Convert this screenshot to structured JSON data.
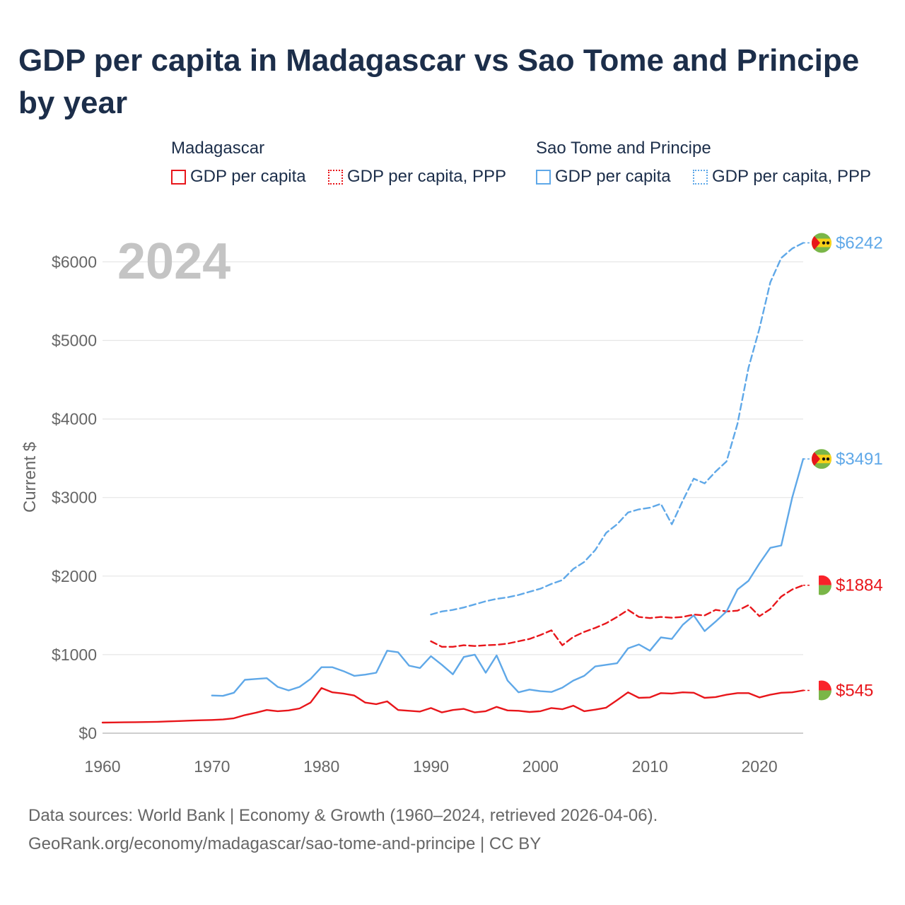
{
  "title": "GDP per capita in Madagascar vs Sao Tome and Principe by year",
  "legend": {
    "groups": [
      {
        "name": "Madagascar",
        "color": "#e8161b",
        "items": [
          "GDP per capita",
          "GDP per capita, PPP"
        ]
      },
      {
        "name": "Sao Tome and Principe",
        "color": "#5fa8e8",
        "items": [
          "GDP per capita",
          "GDP per capita, PPP"
        ]
      }
    ]
  },
  "year_label": "2024",
  "sources": {
    "line1": "Data sources: World Bank | Economy & Growth (1960–2024, retrieved 2026-04-06).",
    "line2": "GeoRank.org/economy/madagascar/sao-tome-and-principe | CC BY"
  },
  "chart_data": {
    "type": "line",
    "ylabel": "Current $",
    "xlabel": "",
    "xlim": [
      1960,
      2024
    ],
    "ylim": [
      0,
      6600
    ],
    "x_ticks": [
      1960,
      1970,
      1980,
      1990,
      2000,
      2010,
      2020
    ],
    "y_ticks": [
      0,
      1000,
      2000,
      3000,
      4000,
      5000,
      6000
    ],
    "y_tick_labels": [
      "$0",
      "$1000",
      "$2000",
      "$3000",
      "$4000",
      "$5000",
      "$6000"
    ],
    "series": [
      {
        "name": "Madagascar GDP per capita",
        "country": "Madagascar",
        "color": "#e8161b",
        "dash": "solid",
        "end_label": "$545",
        "flag": "madagascar-flag",
        "x": [
          1960,
          1961,
          1962,
          1963,
          1964,
          1965,
          1966,
          1967,
          1968,
          1969,
          1970,
          1971,
          1972,
          1973,
          1974,
          1975,
          1976,
          1977,
          1978,
          1979,
          1980,
          1981,
          1982,
          1983,
          1984,
          1985,
          1986,
          1987,
          1988,
          1989,
          1990,
          1991,
          1992,
          1993,
          1994,
          1995,
          1996,
          1997,
          1998,
          1999,
          2000,
          2001,
          2002,
          2003,
          2004,
          2005,
          2006,
          2007,
          2008,
          2009,
          2010,
          2011,
          2012,
          2013,
          2014,
          2015,
          2016,
          2017,
          2018,
          2019,
          2020,
          2021,
          2022,
          2023,
          2024
        ],
        "values": [
          135,
          137,
          139,
          140,
          142,
          145,
          150,
          155,
          160,
          165,
          168,
          175,
          190,
          230,
          260,
          295,
          280,
          290,
          315,
          390,
          575,
          520,
          505,
          480,
          390,
          370,
          405,
          295,
          285,
          275,
          320,
          265,
          295,
          310,
          265,
          280,
          335,
          290,
          285,
          270,
          280,
          320,
          305,
          350,
          280,
          300,
          325,
          420,
          520,
          450,
          455,
          510,
          505,
          520,
          515,
          450,
          460,
          490,
          510,
          510,
          455,
          490,
          515,
          520,
          545
        ]
      },
      {
        "name": "Madagascar GDP per capita, PPP",
        "country": "Madagascar",
        "color": "#e8161b",
        "dash": "dashed",
        "end_label": "$1884",
        "flag": "madagascar-flag",
        "x": [
          1990,
          1991,
          1992,
          1993,
          1994,
          1995,
          1996,
          1997,
          1998,
          1999,
          2000,
          2001,
          2002,
          2003,
          2004,
          2005,
          2006,
          2007,
          2008,
          2009,
          2010,
          2011,
          2012,
          2013,
          2014,
          2015,
          2016,
          2017,
          2018,
          2019,
          2020,
          2021,
          2022,
          2023,
          2024
        ],
        "values": [
          1170,
          1100,
          1100,
          1120,
          1110,
          1120,
          1125,
          1140,
          1170,
          1200,
          1250,
          1310,
          1120,
          1225,
          1290,
          1340,
          1400,
          1480,
          1570,
          1480,
          1465,
          1480,
          1470,
          1480,
          1510,
          1500,
          1570,
          1550,
          1560,
          1630,
          1490,
          1580,
          1740,
          1830,
          1884
        ]
      },
      {
        "name": "Sao Tome and Principe GDP per capita",
        "country": "Sao Tome and Principe",
        "color": "#5fa8e8",
        "dash": "solid",
        "end_label": "$3491",
        "flag": "sao-tome-flag",
        "x": [
          1970,
          1971,
          1972,
          1973,
          1974,
          1975,
          1976,
          1977,
          1978,
          1979,
          1980,
          1981,
          1982,
          1983,
          1984,
          1985,
          1986,
          1987,
          1988,
          1989,
          1990,
          1991,
          1992,
          1993,
          1994,
          1995,
          1996,
          1997,
          1998,
          1999,
          2000,
          2001,
          2002,
          2003,
          2004,
          2005,
          2006,
          2007,
          2008,
          2009,
          2010,
          2011,
          2012,
          2013,
          2014,
          2015,
          2016,
          2017,
          2018,
          2019,
          2020,
          2021,
          2022,
          2023,
          2024
        ],
        "values": [
          480,
          475,
          515,
          680,
          690,
          700,
          590,
          545,
          590,
          690,
          840,
          840,
          790,
          730,
          745,
          770,
          1050,
          1030,
          860,
          830,
          980,
          870,
          750,
          970,
          1000,
          770,
          990,
          670,
          520,
          555,
          535,
          525,
          580,
          670,
          730,
          850,
          870,
          890,
          1080,
          1130,
          1050,
          1220,
          1200,
          1380,
          1500,
          1300,
          1420,
          1550,
          1830,
          1940,
          2160,
          2360,
          2390,
          3000,
          3491
        ]
      },
      {
        "name": "Sao Tome and Principe GDP per capita, PPP",
        "country": "Sao Tome and Principe",
        "color": "#5fa8e8",
        "dash": "dashed",
        "end_label": "$6242",
        "flag": "sao-tome-flag",
        "x": [
          1990,
          1991,
          1992,
          1993,
          1994,
          1995,
          1996,
          1997,
          1998,
          1999,
          2000,
          2001,
          2002,
          2003,
          2004,
          2005,
          2006,
          2007,
          2008,
          2009,
          2010,
          2011,
          2012,
          2013,
          2014,
          2015,
          2016,
          2017,
          2018,
          2019,
          2020,
          2021,
          2022,
          2023,
          2024
        ],
        "values": [
          1510,
          1550,
          1570,
          1600,
          1640,
          1680,
          1710,
          1730,
          1760,
          1800,
          1840,
          1900,
          1950,
          2090,
          2180,
          2330,
          2550,
          2660,
          2810,
          2850,
          2870,
          2920,
          2660,
          2960,
          3240,
          3180,
          3330,
          3460,
          3940,
          4650,
          5150,
          5740,
          6050,
          6170,
          6242
        ]
      }
    ]
  }
}
